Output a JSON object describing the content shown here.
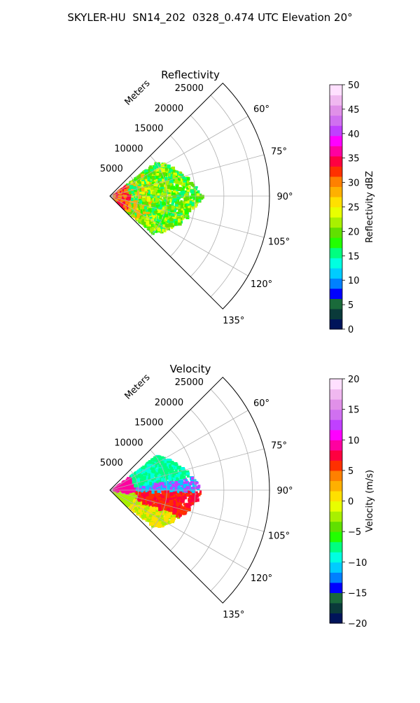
{
  "figure": {
    "suptitle": "SKYLER-HU  SN14_202  0328_0.474 UTC Elevation 20°"
  },
  "chart_data": [
    {
      "type": "polar_sector",
      "title": "Reflectivity",
      "radial_label": "Meters",
      "radial_ticks": [
        5000,
        10000,
        15000,
        20000,
        25000
      ],
      "radial_tick_labels": [
        "5000",
        "10000",
        "15000",
        "20000",
        "25000"
      ],
      "rlim": [
        0,
        28000
      ],
      "azimuth_range_deg": [
        45,
        135
      ],
      "azimuth_ticks": [
        60,
        75,
        90,
        105,
        120,
        135
      ],
      "azimuth_tick_labels": [
        "60°",
        "75°",
        "90°",
        "105°",
        "120°",
        "135°"
      ],
      "grid": true,
      "colorbar": {
        "label": "Reflectivity dBZ",
        "range": [
          0,
          50
        ],
        "ticks": [
          0,
          5,
          10,
          15,
          20,
          25,
          30,
          35,
          40,
          45,
          50
        ],
        "tick_labels": [
          "0",
          "5",
          "10",
          "15",
          "20",
          "25",
          "30",
          "35",
          "40",
          "45",
          "50"
        ],
        "colors": [
          "#00145a",
          "#0a3a3a",
          "#1a6a3a",
          "#0000ff",
          "#0080ff",
          "#00ccff",
          "#00ffe0",
          "#00ff80",
          "#22ff00",
          "#60e000",
          "#a8f000",
          "#e8ff00",
          "#ffe000",
          "#ffb000",
          "#ff8000",
          "#ff3000",
          "#ff0040",
          "#ff00a0",
          "#ff00ff",
          "#c040ff",
          "#d070f0",
          "#e090e8",
          "#f0b8f0",
          "#ffe0ff"
        ]
      }
    },
    {
      "type": "polar_sector",
      "title": "Velocity",
      "radial_label": "Meters",
      "radial_ticks": [
        5000,
        10000,
        15000,
        20000,
        25000
      ],
      "radial_tick_labels": [
        "5000",
        "10000",
        "15000",
        "20000",
        "25000"
      ],
      "rlim": [
        0,
        28000
      ],
      "azimuth_range_deg": [
        45,
        135
      ],
      "azimuth_ticks": [
        60,
        75,
        90,
        105,
        120,
        135
      ],
      "azimuth_tick_labels": [
        "60°",
        "75°",
        "90°",
        "105°",
        "120°",
        "135°"
      ],
      "grid": true,
      "colorbar": {
        "label": "Velocity (m/s)",
        "range": [
          -20,
          20
        ],
        "ticks": [
          -20,
          -15,
          -10,
          -5,
          0,
          5,
          10,
          15,
          20
        ],
        "tick_labels": [
          "−20",
          "−15",
          "−10",
          "−5",
          "0",
          "5",
          "10",
          "15",
          "20"
        ],
        "colors": [
          "#00145a",
          "#0a3a3a",
          "#1a6a3a",
          "#0000ff",
          "#0080ff",
          "#00ccff",
          "#00ffe0",
          "#00ff80",
          "#22ff00",
          "#60e000",
          "#a8f000",
          "#e8ff00",
          "#ffe000",
          "#ffb000",
          "#ff8000",
          "#ff3000",
          "#ff0040",
          "#ff00a0",
          "#ff00ff",
          "#c040ff",
          "#d070f0",
          "#e090e8",
          "#f0b8f0",
          "#ffe0ff"
        ]
      }
    }
  ]
}
